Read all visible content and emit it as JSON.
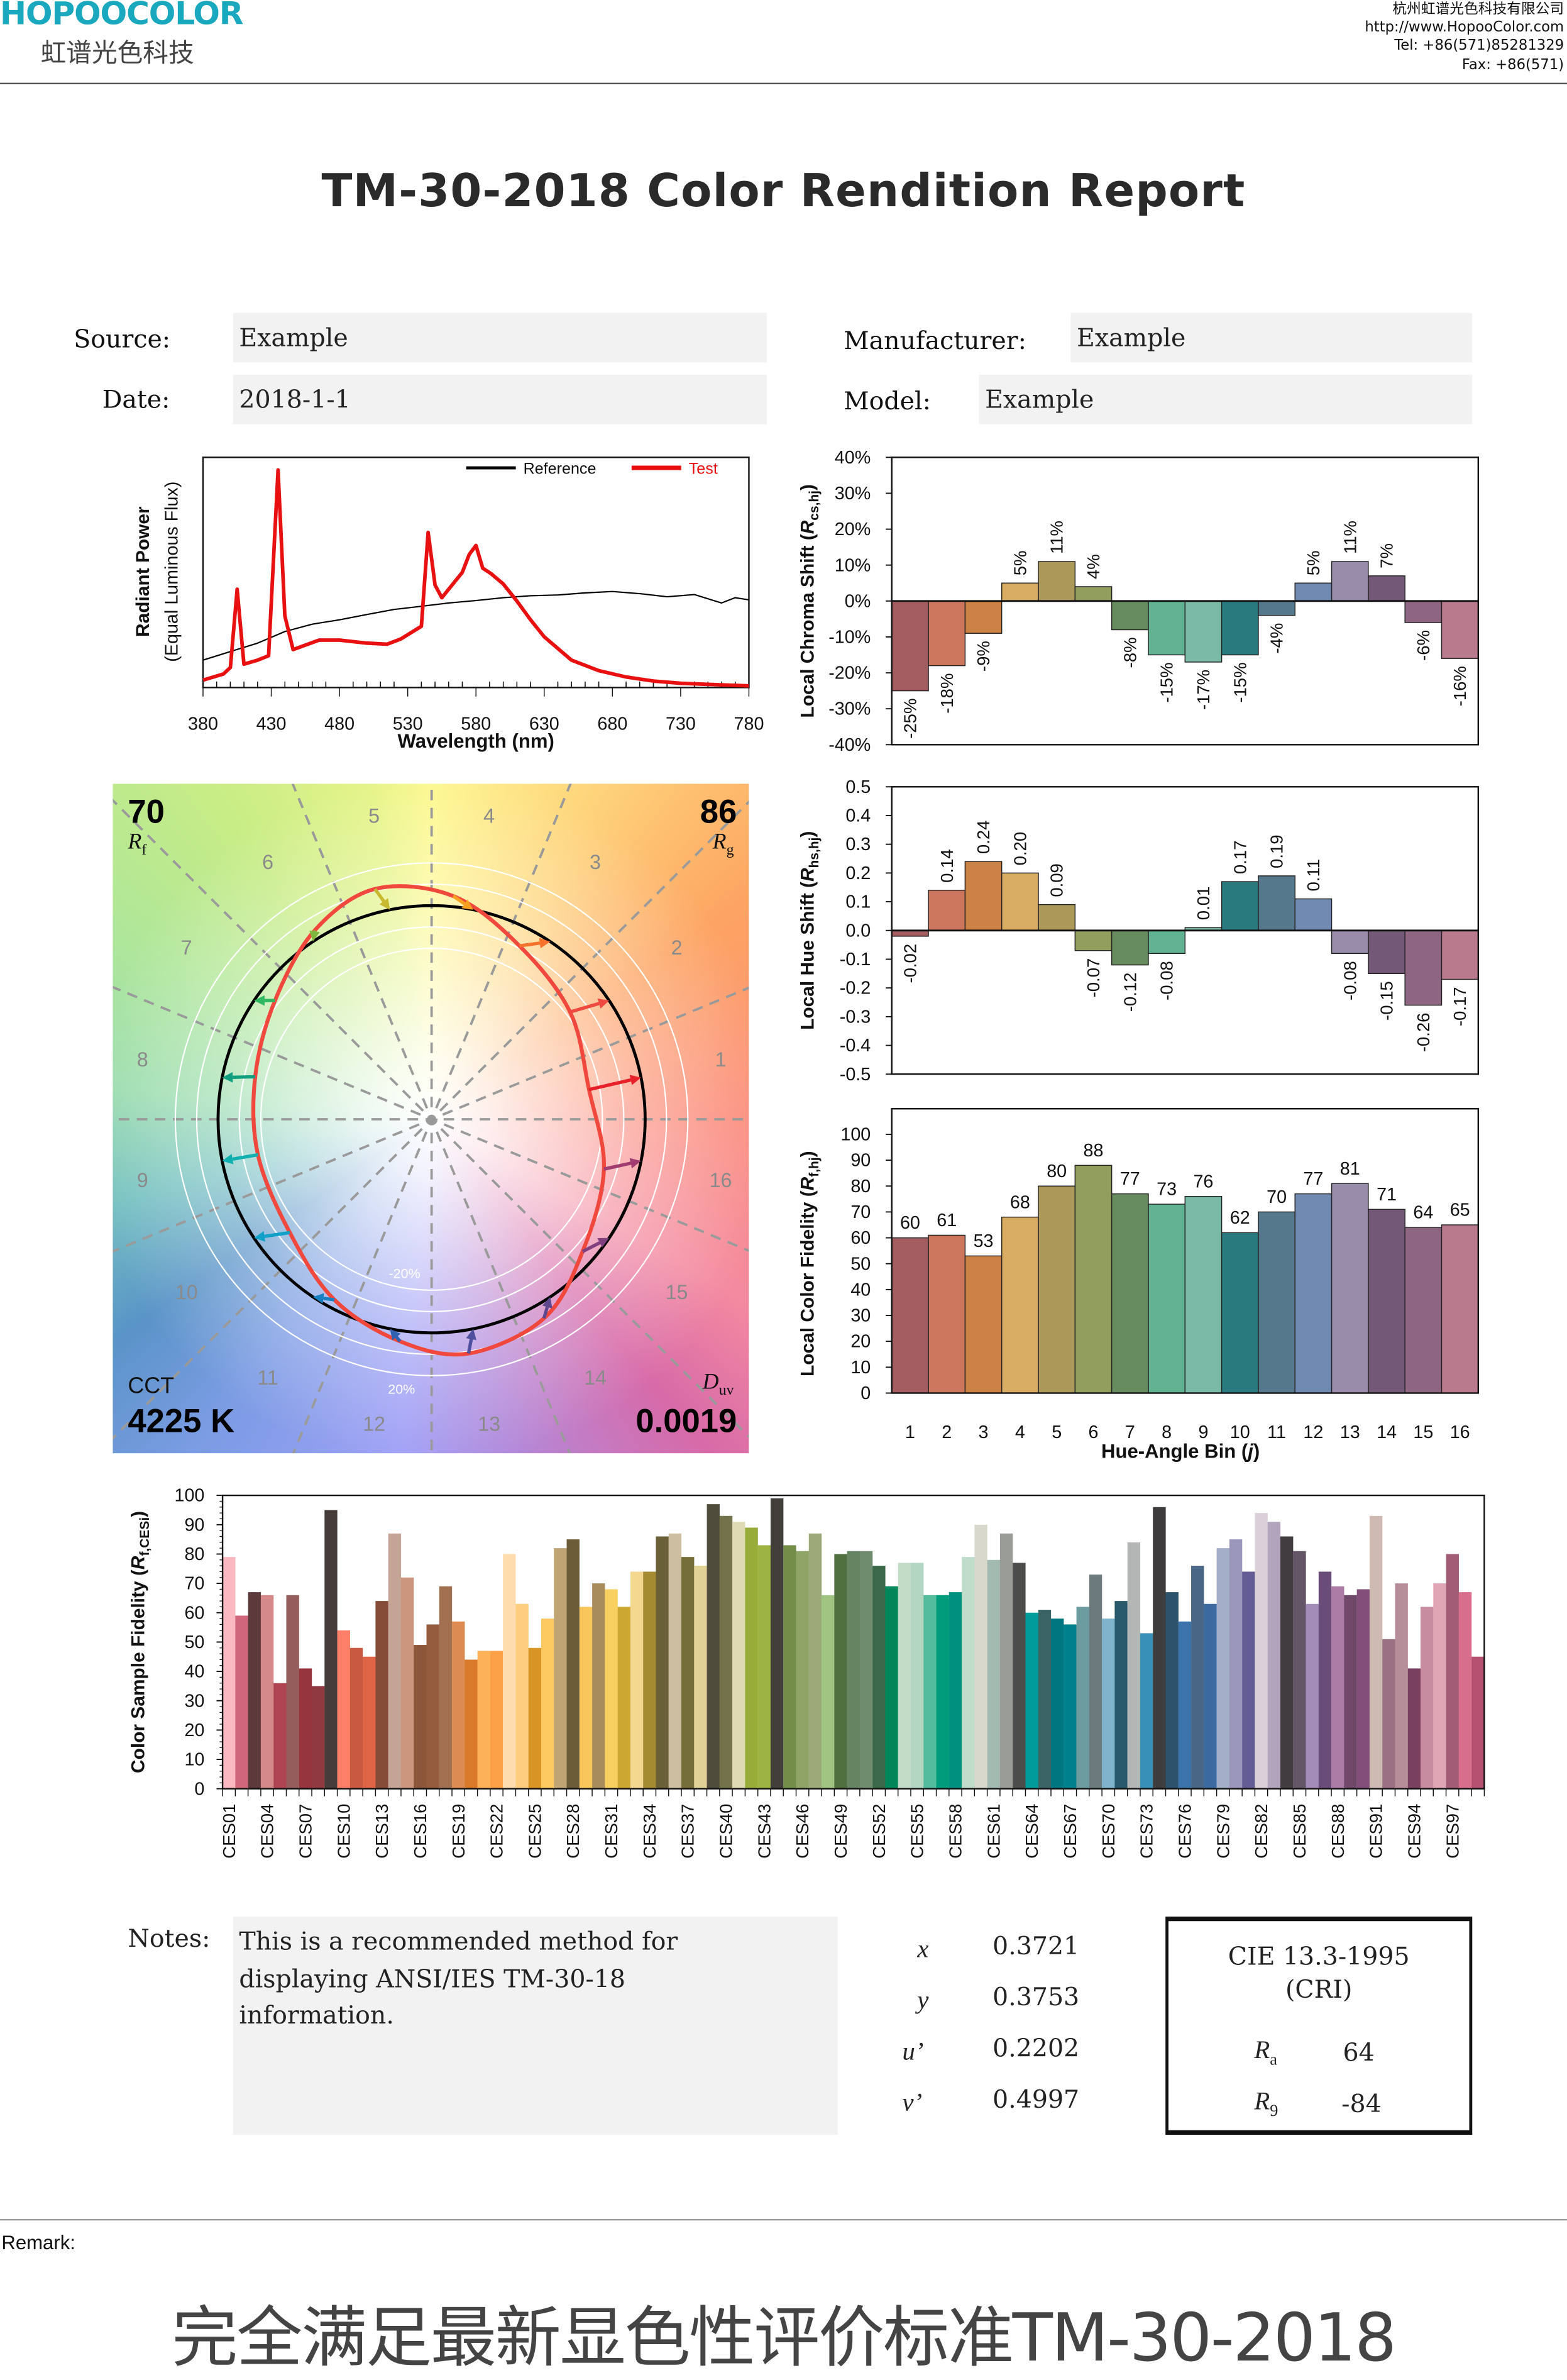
{
  "header": {
    "logo_text": "HOPOOCOLOR",
    "logo_cn": "虹谱光色科技",
    "company": "杭州虹谱光色科技有限公司",
    "website": "http://www.HopooColor.com",
    "tel": "Tel: +86(571)85281329",
    "fax": "Fax: +86(571)",
    "brand_color": "#1aa8be"
  },
  "title": "TM-30-2018 Color Rendition Report",
  "form": {
    "source_label": "Source:",
    "source_value": "Example",
    "date_label": "Date:",
    "date_value": "2018-1-1",
    "manufacturer_label": "Manufacturer:",
    "manufacturer_value": "Example",
    "model_label": "Model:",
    "model_value": "Example"
  },
  "vector_graphic": {
    "rf_value": "70",
    "rf_symbol": "R",
    "rf_sub": "f",
    "rg_value": "86",
    "rg_symbol": "R",
    "rg_sub": "g",
    "cct_label": "CCT",
    "cct_value": "4225 K",
    "duv_symbol": "D",
    "duv_sub": "uv",
    "duv_value": "0.0019",
    "minus_ring_label": "-20%",
    "plus_ring_label": "20%",
    "bin_labels": [
      "1",
      "2",
      "3",
      "4",
      "5",
      "6",
      "7",
      "8",
      "9",
      "10",
      "11",
      "12",
      "13",
      "14",
      "15",
      "16"
    ],
    "test_color": "#f0483c",
    "reference_color": "#000000"
  },
  "bin_colors": [
    "#a35c60",
    "#cc765e",
    "#cc8145",
    "#d8ac62",
    "#ac9959",
    "#919e5d",
    "#668b5e",
    "#61b290",
    "#7bbaa6",
    "#297a7e",
    "#55788d",
    "#708ab2",
    "#988caa",
    "#735877",
    "#8f6682",
    "#ba7a8e"
  ],
  "arrow_colors": [
    "#e8202a",
    "#f04a40",
    "#f5722c",
    "#f7a020",
    "#c8b830",
    "#80b840",
    "#30b860",
    "#10a080",
    "#10b0b0",
    "#10a0c8",
    "#1880c0",
    "#3060b0",
    "#5050a0",
    "#604890",
    "#804080",
    "#a03c70"
  ],
  "chart_data": [
    {
      "id": "spectrum",
      "type": "line",
      "xlabel": "Wavelength (nm)",
      "ylabel": "Radiant Power",
      "ylabel2": "(Equal Luminous Flux)",
      "xlim": [
        380,
        780
      ],
      "xticks": [
        380,
        430,
        480,
        530,
        580,
        630,
        680,
        730,
        780
      ],
      "legend": "top-right",
      "series": [
        {
          "name": "Reference",
          "color": "#000000",
          "x": [
            380,
            400,
            420,
            440,
            460,
            480,
            500,
            520,
            540,
            560,
            580,
            600,
            620,
            640,
            660,
            680,
            700,
            720,
            740,
            760,
            770,
            780
          ],
          "y": [
            0.119,
            0.156,
            0.193,
            0.243,
            0.275,
            0.294,
            0.317,
            0.339,
            0.353,
            0.367,
            0.378,
            0.39,
            0.399,
            0.402,
            0.411,
            0.417,
            0.408,
            0.394,
            0.404,
            0.367,
            0.39,
            0.381
          ]
        },
        {
          "name": "Test",
          "color": "#e81010",
          "x": [
            380,
            395,
            400,
            405,
            410,
            420,
            428,
            435,
            440,
            446,
            465,
            480,
            500,
            515,
            525,
            540,
            545,
            550,
            555,
            570,
            575,
            580,
            585,
            591,
            600,
            610,
            620,
            630,
            650,
            670,
            690,
            710,
            730,
            750,
            780
          ],
          "y": [
            0.032,
            0.059,
            0.087,
            0.427,
            0.101,
            0.119,
            0.138,
            0.945,
            0.312,
            0.165,
            0.206,
            0.206,
            0.193,
            0.188,
            0.211,
            0.266,
            0.674,
            0.445,
            0.39,
            0.5,
            0.578,
            0.617,
            0.518,
            0.495,
            0.45,
            0.376,
            0.294,
            0.22,
            0.119,
            0.073,
            0.046,
            0.028,
            0.018,
            0.014,
            0.007
          ]
        }
      ]
    },
    {
      "id": "chroma",
      "type": "bar",
      "ylabel_pre": "Local Chroma Shift (",
      "ylabel_var": "R",
      "ylabel_sub": "cs,hj",
      "ylabel_post": ")",
      "ylim": [
        -40,
        40
      ],
      "yticks": [
        "40%",
        "30%",
        "20%",
        "10%",
        "0%",
        "-10%",
        "-20%",
        "-30%",
        "-40%"
      ],
      "categories": [
        1,
        2,
        3,
        4,
        5,
        6,
        7,
        8,
        9,
        10,
        11,
        12,
        13,
        14,
        15,
        16
      ],
      "values": [
        -25,
        -18,
        -9,
        5,
        11,
        4,
        -8,
        -15,
        -17,
        -15,
        -4,
        5,
        11,
        7,
        -6,
        -16
      ],
      "labels": [
        "-25%",
        "-18%",
        "-9%",
        "5%",
        "11%",
        "4%",
        "-8%",
        "-15%",
        "-17%",
        "-15%",
        "-4%",
        "5%",
        "11%",
        "7%",
        "-6%",
        "-16%"
      ]
    },
    {
      "id": "hue",
      "type": "bar",
      "ylabel_pre": "Local Hue Shift (",
      "ylabel_var": "R",
      "ylabel_sub": "hs,hj",
      "ylabel_post": ")",
      "ylim": [
        -0.5,
        0.5
      ],
      "yticks": [
        "0.5",
        "0.4",
        "0.3",
        "0.2",
        "0.1",
        "0.0",
        "-0.1",
        "-0.2",
        "-0.3",
        "-0.4",
        "-0.5"
      ],
      "categories": [
        1,
        2,
        3,
        4,
        5,
        6,
        7,
        8,
        9,
        10,
        11,
        12,
        13,
        14,
        15,
        16
      ],
      "values": [
        -0.02,
        0.14,
        0.24,
        0.2,
        0.09,
        -0.07,
        -0.12,
        -0.08,
        0.01,
        0.17,
        0.19,
        0.11,
        -0.08,
        -0.15,
        -0.26,
        -0.17
      ],
      "labels": [
        "-0.02",
        "0.14",
        "0.24",
        "0.20",
        "0.09",
        "-0.07",
        "-0.12",
        "-0.08",
        "0.01",
        "0.17",
        "0.19",
        "0.11",
        "-0.08",
        "-0.15",
        "-0.26",
        "-0.17"
      ]
    },
    {
      "id": "fidelity",
      "type": "bar",
      "ylabel_pre": "Local Color Fidelity (",
      "ylabel_var": "R",
      "ylabel_sub": "f,hj",
      "ylabel_post": ")",
      "xlabel_pre": "Hue-Angle Bin (",
      "xlabel_var": "j",
      "xlabel_post": ")",
      "ylim": [
        0,
        100
      ],
      "yticks": [
        "100",
        "90",
        "80",
        "70",
        "60",
        "50",
        "40",
        "30",
        "20",
        "10",
        "0"
      ],
      "categories": [
        "1",
        "2",
        "3",
        "4",
        "5",
        "6",
        "7",
        "8",
        "9",
        "10",
        "11",
        "12",
        "13",
        "14",
        "15",
        "16"
      ],
      "values": [
        60,
        61,
        53,
        68,
        80,
        88,
        77,
        73,
        76,
        62,
        70,
        77,
        81,
        71,
        64,
        65
      ],
      "labels": [
        "60",
        "61",
        "53",
        "68",
        "80",
        "88",
        "77",
        "73",
        "76",
        "62",
        "70",
        "77",
        "81",
        "71",
        "64",
        "65"
      ]
    },
    {
      "id": "ces",
      "type": "bar",
      "ylabel_pre": "Color Sample Fidelity (",
      "ylabel_var": "R",
      "ylabel_sub": "f,CESi",
      "ylabel_post": ")",
      "ylim": [
        0,
        100
      ],
      "yticks": [
        "100",
        "90",
        "80",
        "70",
        "60",
        "50",
        "40",
        "30",
        "20",
        "10",
        "0"
      ],
      "tick_labels": [
        "CES01",
        "CES04",
        "CES07",
        "CES10",
        "CES13",
        "CES16",
        "CES19",
        "CES22",
        "CES25",
        "CES28",
        "CES31",
        "CES34",
        "CES37",
        "CES40",
        "CES43",
        "CES46",
        "CES49",
        "CES52",
        "CES55",
        "CES58",
        "CES61",
        "CES64",
        "CES67",
        "CES70",
        "CES73",
        "CES76",
        "CES79",
        "CES82",
        "CES85",
        "CES88",
        "CES91",
        "CES94",
        "CES97"
      ],
      "values": [
        79,
        59,
        67,
        66,
        36,
        66,
        41,
        35,
        95,
        54,
        48,
        45,
        64,
        87,
        72,
        49,
        56,
        69,
        57,
        44,
        47,
        47,
        80,
        63,
        48,
        58,
        82,
        85,
        62,
        70,
        68,
        62,
        74,
        74,
        86,
        87,
        79,
        76,
        97,
        93,
        91,
        89,
        83,
        99,
        83,
        81,
        87,
        66,
        80,
        81,
        81,
        76,
        69,
        77,
        77,
        66,
        66,
        67,
        79,
        90,
        78,
        87,
        77,
        60,
        61,
        58,
        56,
        62,
        73,
        58,
        64,
        84,
        53,
        96,
        67,
        57,
        76,
        63,
        82,
        85,
        74,
        94,
        91,
        86,
        81,
        63,
        74,
        69,
        66,
        68,
        93,
        51,
        70,
        41,
        62,
        70,
        80,
        67,
        45
      ],
      "colors": [
        "#fbb8c0",
        "#d0667a",
        "#5c3a3c",
        "#d48888",
        "#b04452",
        "#955e5c",
        "#96353e",
        "#8e3a40",
        "#463c3a",
        "#ff8068",
        "#c85a42",
        "#e06446",
        "#874c38",
        "#c4a494",
        "#cc967e",
        "#8c563a",
        "#945c3c",
        "#a07050",
        "#dc8c52",
        "#d87a2a",
        "#fdb25a",
        "#fca048",
        "#fedcae",
        "#fecd7e",
        "#d89424",
        "#fcc860",
        "#c0a474",
        "#6c5c38",
        "#f8c65a",
        "#a88c5c",
        "#f8d060",
        "#cca832",
        "#f4d890",
        "#a48a30",
        "#6a6038",
        "#cebea0",
        "#766e38",
        "#e0d294",
        "#504c3c",
        "#74724a",
        "#e0dab4",
        "#98ac3a",
        "#9eb442",
        "#423e3a",
        "#728e48",
        "#90a468",
        "#9caa7a",
        "#a0c482",
        "#507040",
        "#648462",
        "#708c6e",
        "#3a6848",
        "#008658",
        "#c2dcc8",
        "#b2d6c2",
        "#52bc9c",
        "#009c7c",
        "#009080",
        "#c0dcca",
        "#d8d8cc",
        "#a2bab0",
        "#9a9c96",
        "#4c4c4a",
        "#009c9c",
        "#3a6464",
        "#007680",
        "#007f8c",
        "#6c9ca0",
        "#6c7a7e",
        "#80b4cc",
        "#285a6c",
        "#b4b6b6",
        "#3890b8",
        "#3e3c3c",
        "#2c526c",
        "#3a74aa",
        "#4a6686",
        "#3a6aa0",
        "#a4aec8",
        "#9a96bc",
        "#645c94",
        "#dcd0d8",
        "#b2a4bc",
        "#423c40",
        "#645666",
        "#a48cb8",
        "#6a4c78",
        "#ac7ca6",
        "#70486a",
        "#824e7a",
        "#cebab2",
        "#9a7082",
        "#b68e9a",
        "#7a4060",
        "#c88ca0",
        "#e0a6b6",
        "#a25c76",
        "#d66e8c",
        "#b45070"
      ]
    }
  ],
  "notes": {
    "label": "Notes:",
    "lines": [
      "This is a recommended method for",
      "displaying ANSI/IES TM-30-18",
      "information."
    ]
  },
  "chromaticity": {
    "x_label": "x",
    "x_value": "0.3721",
    "y_label": "y",
    "y_value": "0.3753",
    "u_label": "u’",
    "u_value": "0.2202",
    "v_label": "v’",
    "v_value": "0.4997"
  },
  "cie": {
    "title1": "CIE 13.3-1995",
    "title2": "(CRI)",
    "ra_symbol": "R",
    "ra_sub": "a",
    "ra_value": "64",
    "r9_symbol": "R",
    "r9_sub": "9",
    "r9_value": "-84"
  },
  "remark_label": "Remark:",
  "footer_slogan": "完全满足最新显色性评价标准TM-30-2018"
}
